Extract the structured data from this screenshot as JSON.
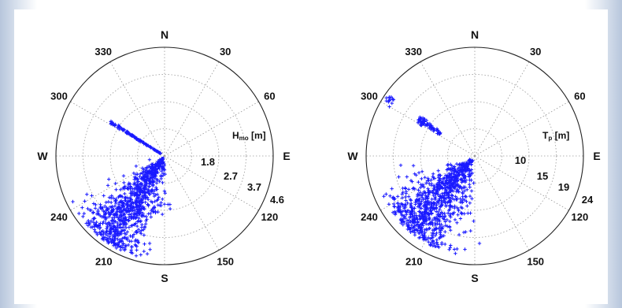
{
  "colors": {
    "points": "#1a1aff",
    "axis": "#222222",
    "grid": "#9a9a9a"
  },
  "chart_data": [
    {
      "type": "scatter",
      "subtype": "polar",
      "title": "",
      "radial_label": "Hmo [m]",
      "radial_label_main": "H",
      "radial_label_sub": "mo",
      "radial_label_unit": " [m]",
      "radial_ticks": [
        "1.8",
        "2.7",
        "3.7",
        "4.6"
      ],
      "rmax": 4.6,
      "angle_labels": [
        "N",
        "30",
        "60",
        "E",
        "120",
        "150",
        "S",
        "210",
        "240",
        "W",
        "300",
        "330"
      ],
      "grid": true,
      "marker": "+",
      "clusters": [
        {
          "name": "",
          "dir_center": 215,
          "dir_spread": 18,
          "r_min": 0.1,
          "r_max": 4.4,
          "count": 900,
          "density": "heavy"
        },
        {
          "name": "",
          "dir_center": 302,
          "dir_spread": 2,
          "r_min": 0.2,
          "r_max": 2.7,
          "count": 120,
          "density": "line"
        },
        {
          "name": "",
          "dir_center": 185,
          "dir_spread": 6,
          "r_min": 0.2,
          "r_max": 2.5,
          "count": 40,
          "density": "light"
        }
      ]
    },
    {
      "type": "scatter",
      "subtype": "polar",
      "title": "",
      "radial_label": "Tp [m]",
      "radial_label_main": "T",
      "radial_label_sub": "p",
      "radial_label_unit": " [m]",
      "radial_ticks": [
        "10",
        "15",
        "19",
        "24"
      ],
      "rmax": 24,
      "angle_labels": [
        "N",
        "30",
        "60",
        "E",
        "120",
        "150",
        "S",
        "210",
        "240",
        "W",
        "300",
        "330"
      ],
      "grid": true,
      "marker": "+",
      "clusters": [
        {
          "name": "",
          "dir_center": 222,
          "dir_spread": 20,
          "r_min": 1,
          "r_max": 22,
          "count": 900,
          "density": "heavy"
        },
        {
          "name": "",
          "dir_center": 303,
          "dir_spread": 3,
          "r_min": 9,
          "r_max": 23.5,
          "count": 90,
          "density": "band"
        },
        {
          "name": "",
          "dir_center": 190,
          "dir_spread": 6,
          "r_min": 2,
          "r_max": 18,
          "count": 40,
          "density": "light"
        }
      ]
    }
  ]
}
